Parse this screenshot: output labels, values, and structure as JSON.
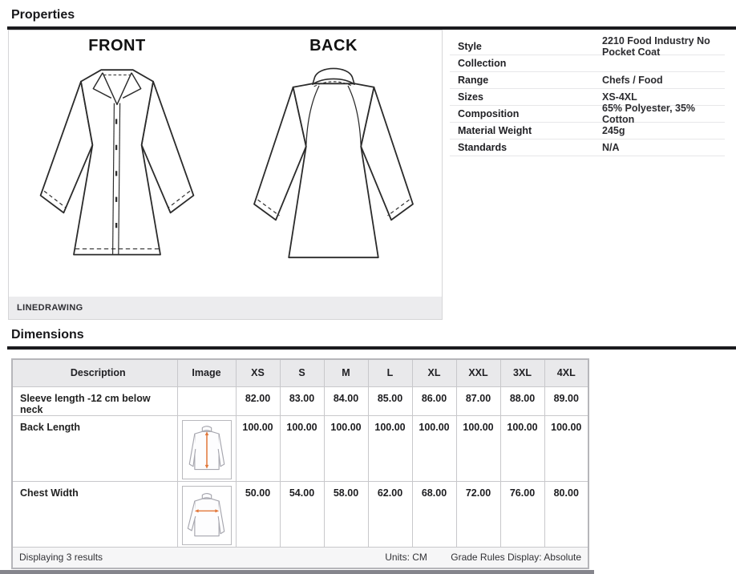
{
  "headings": {
    "properties": "Properties",
    "dimensions": "Dimensions"
  },
  "linedrawing": {
    "front_label": "FRONT",
    "back_label": "BACK",
    "caption": "LINEDRAWING"
  },
  "properties": [
    {
      "label": "Style",
      "value": "2210 Food Industry No Pocket Coat"
    },
    {
      "label": "Collection",
      "value": ""
    },
    {
      "label": "Range",
      "value": "Chefs / Food"
    },
    {
      "label": "Sizes",
      "value": "XS-4XL"
    },
    {
      "label": "Composition",
      "value": "65% Polyester, 35% Cotton"
    },
    {
      "label": "Material Weight",
      "value": "245g"
    },
    {
      "label": "Standards",
      "value": "N/A"
    }
  ],
  "dimensions": {
    "columns": [
      "Description",
      "Image",
      "XS",
      "S",
      "M",
      "L",
      "XL",
      "XXL",
      "3XL",
      "4XL"
    ],
    "highlight_column": "M",
    "rows": [
      {
        "description": "Sleeve length -12 cm below neck",
        "image": null,
        "values": [
          "82.00",
          "83.00",
          "84.00",
          "85.00",
          "86.00",
          "87.00",
          "88.00",
          "89.00"
        ]
      },
      {
        "description": "Back Length",
        "image": "back-length",
        "values": [
          "100.00",
          "100.00",
          "100.00",
          "100.00",
          "100.00",
          "100.00",
          "100.00",
          "100.00"
        ]
      },
      {
        "description": "Chest Width",
        "image": "chest-width",
        "values": [
          "50.00",
          "54.00",
          "58.00",
          "62.00",
          "68.00",
          "72.00",
          "76.00",
          "80.00"
        ]
      }
    ],
    "footer": {
      "results_text": "Displaying 3 results",
      "units_text": "Units: CM",
      "grade_rules_text": "Grade Rules Display: Absolute"
    }
  },
  "icons": {
    "back_length_diagram": "back-length-measure-icon",
    "chest_width_diagram": "chest-width-measure-icon"
  },
  "colors": {
    "accent_arrow": "#e2773a",
    "section_rule": "#1b1b1e",
    "table_header_bg": "#e9e9eb",
    "highlight_header_bg": "#c9c9ce",
    "highlight_cell_bg": "#dbdbdf",
    "footer_bg": "#f6f6f7",
    "caption_bar_bg": "#ececee"
  }
}
